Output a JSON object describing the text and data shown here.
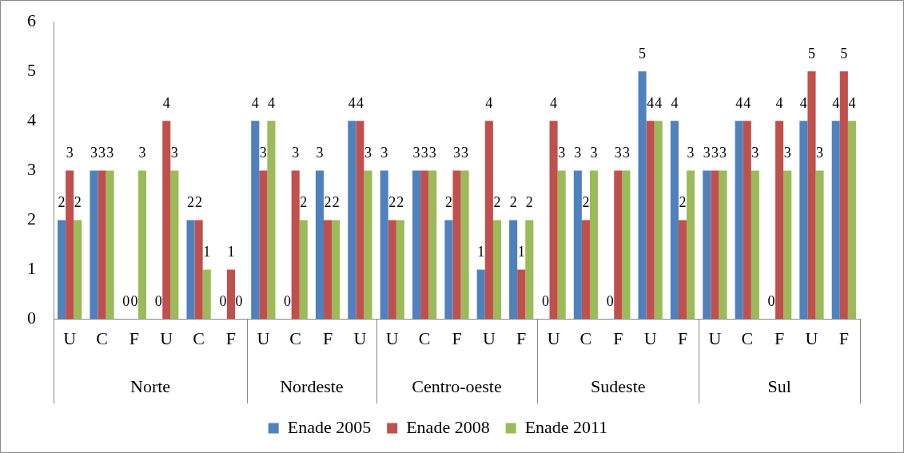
{
  "chart_data": {
    "type": "bar",
    "categories": [
      "U",
      "C",
      "F",
      "U",
      "C",
      "F",
      "U",
      "C",
      "F",
      "U",
      "U",
      "C",
      "F",
      "U",
      "F",
      "U",
      "C",
      "F",
      "U",
      "F",
      "U",
      "C",
      "F",
      "U",
      "F"
    ],
    "series": [
      {
        "name": "Enade 2005",
        "color": "#4f81bd",
        "values": [
          2,
          3,
          0,
          0,
          2,
          0,
          4,
          0,
          3,
          4,
          3,
          3,
          2,
          1,
          2,
          0,
          3,
          0,
          5,
          4,
          3,
          4,
          0,
          4,
          4
        ]
      },
      {
        "name": "Enade 2008",
        "color": "#c0504d",
        "values": [
          3,
          3,
          0,
          4,
          2,
          1,
          3,
          3,
          2,
          4,
          2,
          3,
          3,
          4,
          1,
          4,
          2,
          3,
          4,
          2,
          3,
          4,
          4,
          5,
          5
        ]
      },
      {
        "name": "Enade 2011",
        "color": "#9bbb59",
        "values": [
          2,
          3,
          3,
          3,
          1,
          0,
          4,
          2,
          2,
          3,
          2,
          3,
          3,
          2,
          2,
          3,
          3,
          3,
          4,
          3,
          3,
          3,
          3,
          3,
          4
        ]
      }
    ],
    "annotations": [
      "Norte",
      "Nordeste",
      "Centro-oeste",
      "Sudeste",
      "Sul"
    ],
    "ylim": [
      0,
      6
    ],
    "yticks": [
      0,
      1,
      2,
      3,
      4,
      5,
      6
    ],
    "grid": false,
    "legend": "bottom",
    "data_labels": true
  }
}
